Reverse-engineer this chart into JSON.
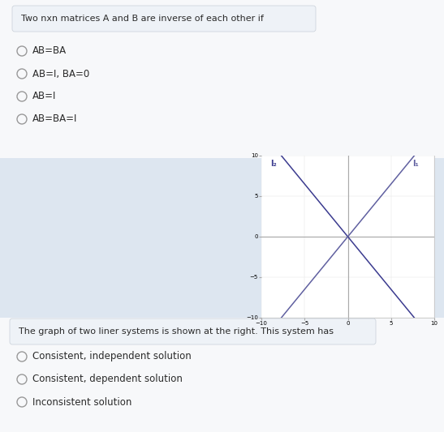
{
  "title1": "Two nxn matrices A and B are inverse of each other if",
  "options1": [
    "AB=BA",
    "AB=I, BA=0",
    "AB=I",
    "AB=BA=I"
  ],
  "title2": "The graph of two liner systems is shown at the right. This system has",
  "options2": [
    "Consistent, independent solution",
    "Consistent, dependent solution",
    "Inconsistent solution"
  ],
  "bg_color": "#f7f8fa",
  "box_bg": "#eef2f7",
  "panel_bg": "#dde6f0",
  "text_color": "#2a2a2a",
  "line1_color": "#3b3b8f",
  "line2_color": "#6060a0",
  "graph_bg": "#ffffff",
  "xlim": [
    -10,
    10
  ],
  "ylim": [
    -10,
    10
  ],
  "xticks": [
    -10,
    -5,
    0,
    5,
    10
  ],
  "yticks": [
    -10,
    -5,
    0,
    5,
    10
  ],
  "label_l2": "l₂",
  "label_l1": "l₁",
  "slope1": 1.3,
  "slope2": -1.3
}
